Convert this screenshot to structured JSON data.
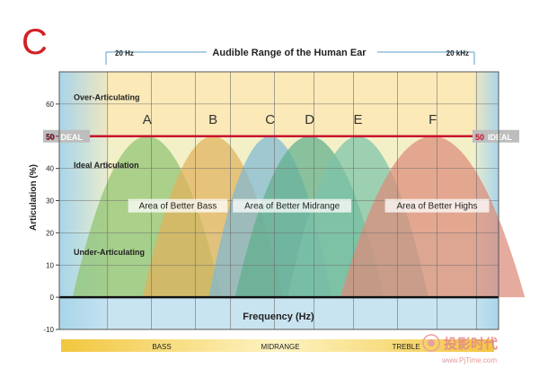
{
  "panel_label": "C",
  "watermark": {
    "text_cn": "投影时代",
    "text_url": "www.PjTime.com"
  },
  "chart_data": {
    "type": "area",
    "title": "Audible Range of the Human Ear",
    "range_labels": {
      "low": "20 Hz",
      "high": "20 kHz"
    },
    "xlabel": "Frequency (Hz)",
    "ylabel": "Articulation (%)",
    "ylim": [
      -10,
      70
    ],
    "yticks": [
      -10,
      0,
      10,
      20,
      30,
      40,
      50,
      60
    ],
    "grid": true,
    "ideal_line": {
      "value": 50,
      "label_value": "50",
      "label_text": "IDEAL",
      "color": "#c8102e"
    },
    "zones": [
      {
        "name": "Over-Articulating",
        "y_from": 50,
        "y_to": 70,
        "color": "#fbe9b8"
      },
      {
        "name": "Ideal Articulation",
        "y_from": 20,
        "y_to": 50,
        "color": "#f3f0c8"
      },
      {
        "name": "Under-Articulating",
        "y_from": 0,
        "y_to": 20,
        "color": "#dfeccf"
      }
    ],
    "series": [
      {
        "name": "A",
        "center": 2.0,
        "half_width": 1.7,
        "peak": 50,
        "color": "#8fc370"
      },
      {
        "name": "B",
        "center": 3.5,
        "half_width": 1.6,
        "peak": 50,
        "color": "#e1b25c"
      },
      {
        "name": "C",
        "center": 4.8,
        "half_width": 1.4,
        "peak": 50,
        "color": "#7fb9d3"
      },
      {
        "name": "D",
        "center": 5.7,
        "half_width": 1.7,
        "peak": 50,
        "color": "#5fae8c"
      },
      {
        "name": "E",
        "center": 6.8,
        "half_width": 1.6,
        "peak": 50,
        "color": "#7cc2a8"
      },
      {
        "name": "F",
        "center": 8.5,
        "half_width": 2.1,
        "peak": 50,
        "color": "#dd8a7a"
      }
    ],
    "region_labels": [
      {
        "text": "Area of Better Bass",
        "x": 2.7,
        "y": 28
      },
      {
        "text": "Area of Better Midrange",
        "x": 5.3,
        "y": 28
      },
      {
        "text": "Area of Better Highs",
        "x": 8.6,
        "y": 28
      }
    ],
    "band_bar": {
      "labels": [
        "BASS",
        "MIDRANGE",
        "TREBLE"
      ],
      "colors": [
        "#f2c63e",
        "#fbeeb0",
        "#f2c63e"
      ]
    },
    "colors": {
      "axis": "#111111",
      "grid": "#6f6f6f",
      "panel_label": "#d21f26",
      "side_bands": "#a9d5ea"
    }
  }
}
